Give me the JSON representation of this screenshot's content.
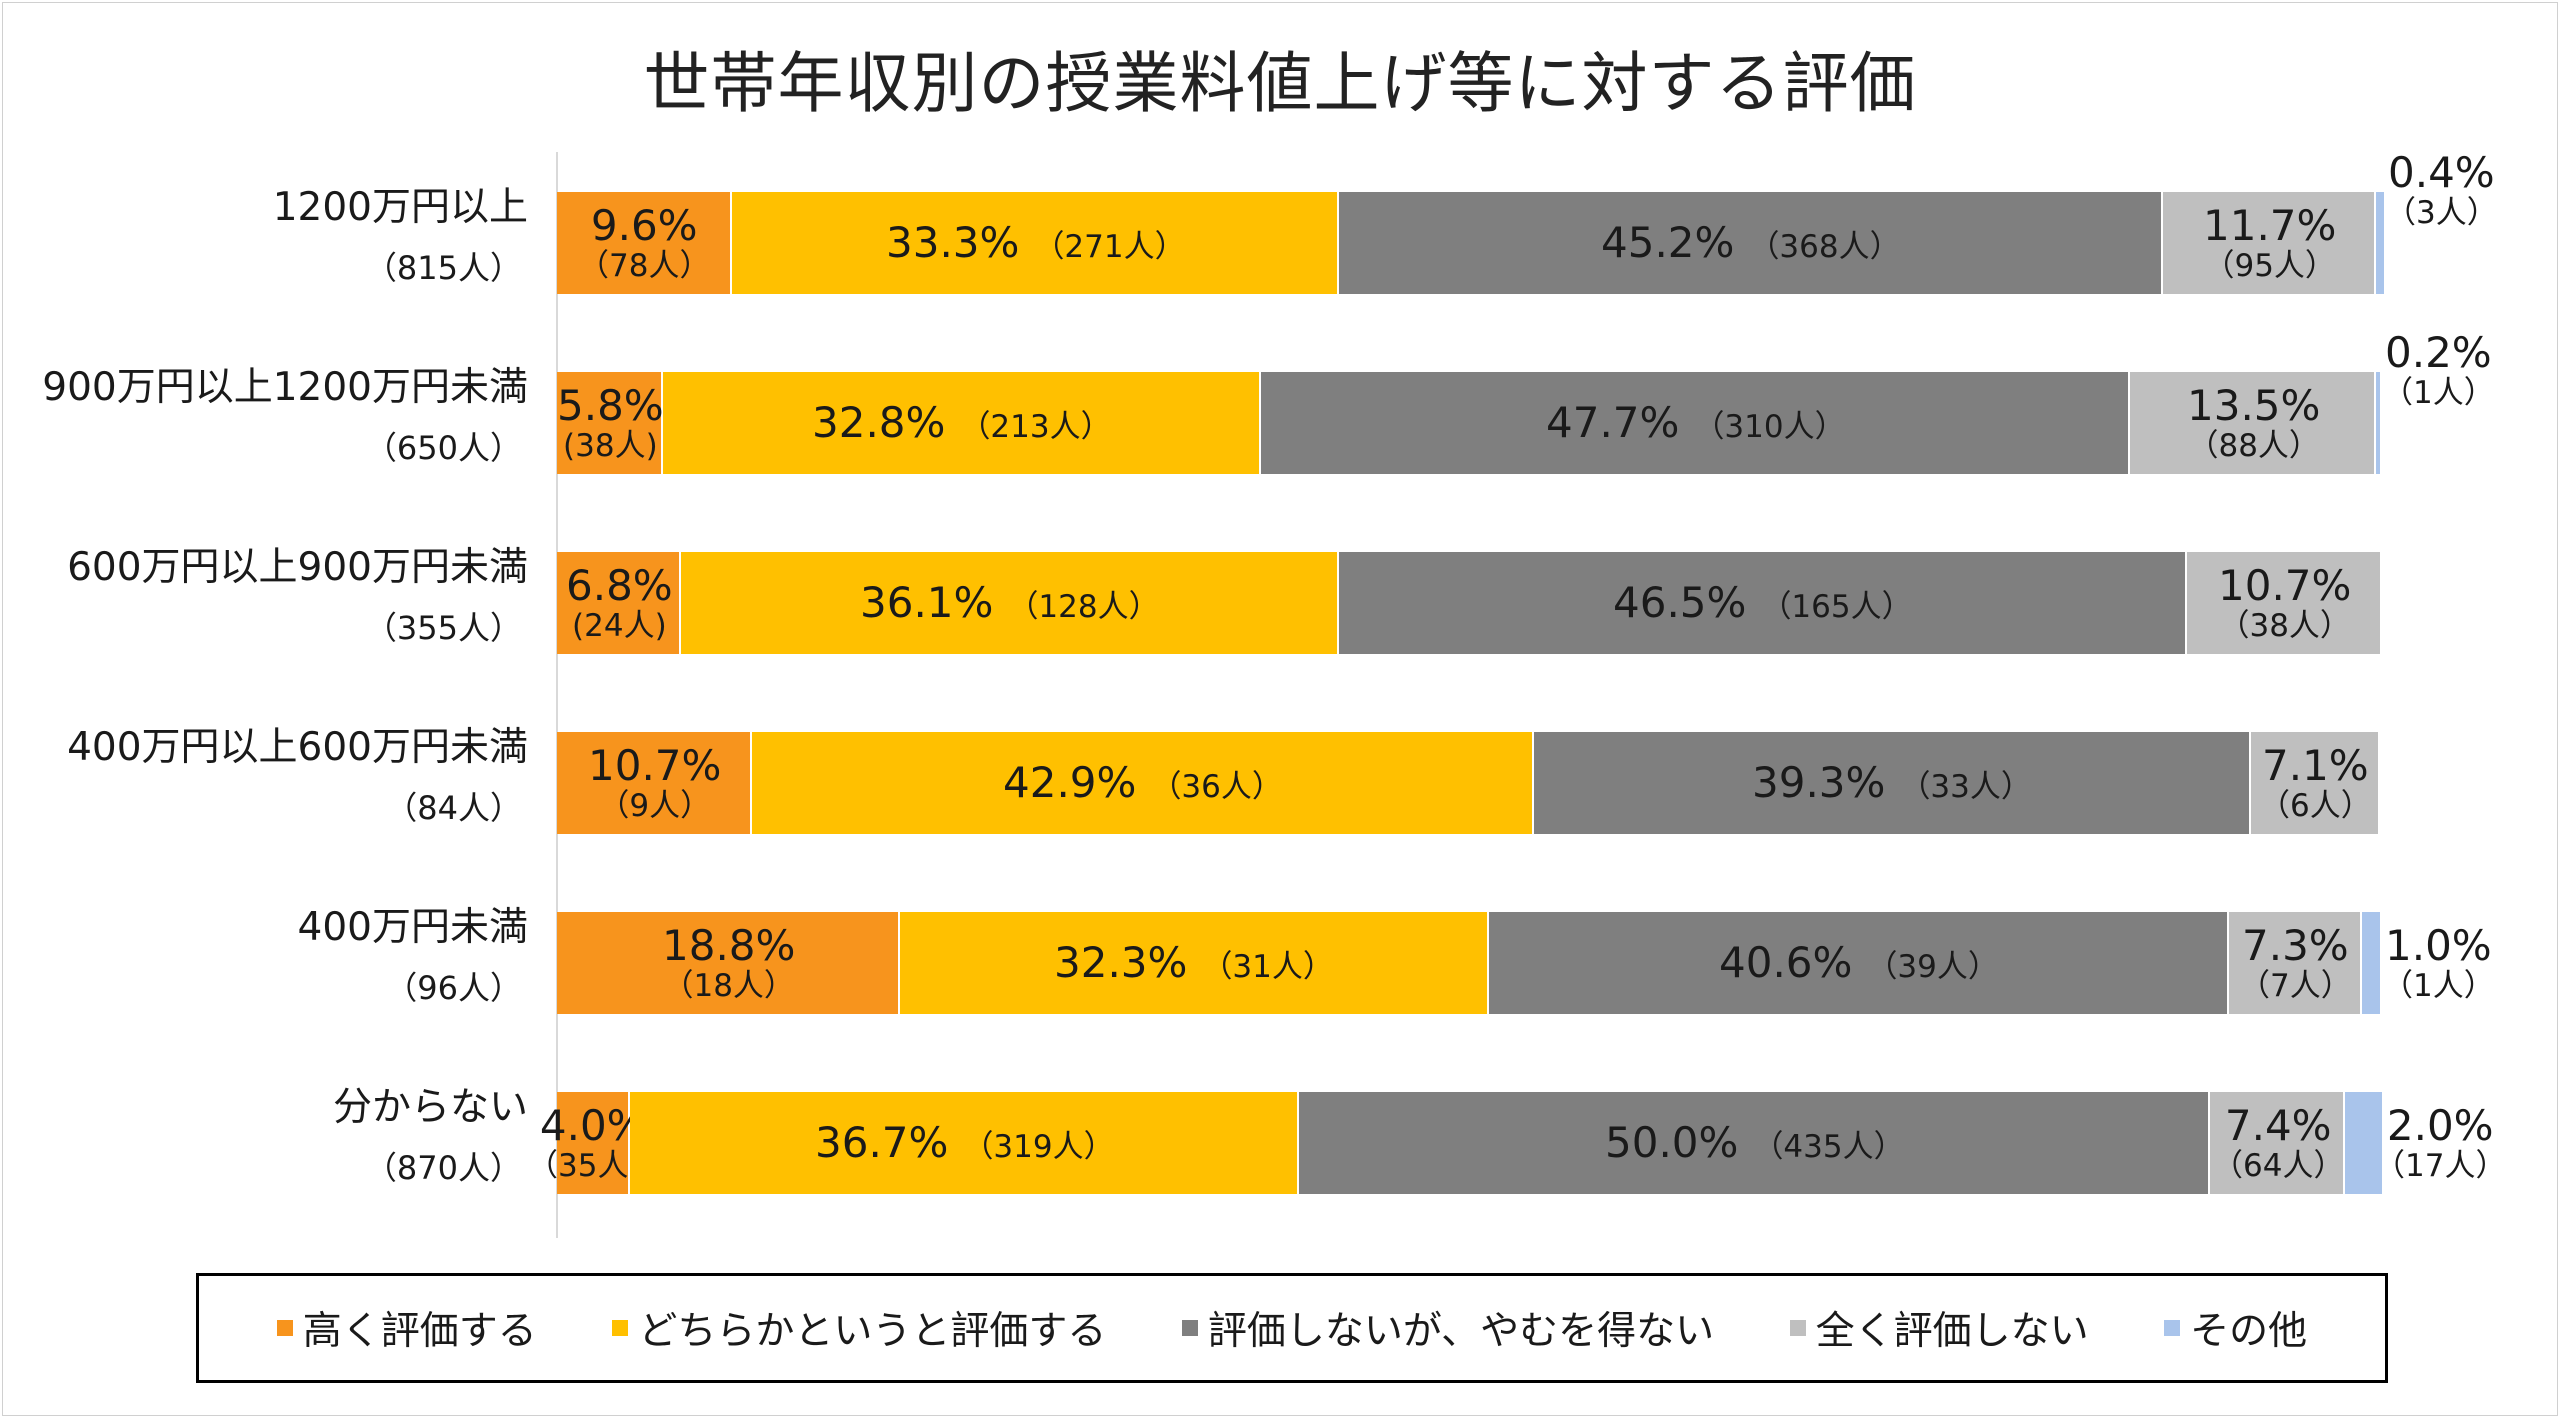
{
  "chart_data": {
    "type": "bar",
    "orientation": "horizontal",
    "stacked": true,
    "normalized": true,
    "title": "世帯年収別の授業料値上げ等に対する評価",
    "categories": [
      {
        "name": "1200万円以上",
        "n": "（815人）"
      },
      {
        "name": "900万円以上1200万円未満",
        "n": "（650人）"
      },
      {
        "name": "600万円以上900万円未満",
        "n": "（355人）"
      },
      {
        "name": "400万円以上600万円未満",
        "n": "（84人）"
      },
      {
        "name": "400万円未満",
        "n": "（96人）"
      },
      {
        "name": "分からない",
        "n": "（870人）"
      }
    ],
    "series": [
      {
        "name": "高く評価する",
        "color": "#F7941D",
        "values": [
          9.6,
          5.8,
          6.8,
          10.7,
          18.8,
          4.0
        ],
        "pct_labels": [
          "9.6%",
          "5.8%",
          "6.8%",
          "10.7%",
          "18.8%",
          "4.0%"
        ],
        "count_labels": [
          "（78人）",
          "(38人)",
          "(24人)",
          "（9人）",
          "（18人）",
          "（35人）"
        ]
      },
      {
        "name": "どちらかというと評価する",
        "color": "#FFC000",
        "values": [
          33.3,
          32.8,
          36.1,
          42.9,
          32.3,
          36.7
        ],
        "pct_labels": [
          "33.3%",
          "32.8%",
          "36.1%",
          "42.9%",
          "32.3%",
          "36.7%"
        ],
        "count_labels": [
          "（271人）",
          "（213人）",
          "（128人）",
          "（36人）",
          "（31人）",
          "（319人）"
        ]
      },
      {
        "name": "評価しないが、やむを得ない",
        "color": "#7F7F7F",
        "values": [
          45.2,
          47.7,
          46.5,
          39.3,
          40.6,
          50.0
        ],
        "pct_labels": [
          "45.2%",
          "47.7%",
          "46.5%",
          "39.3%",
          "40.6%",
          "50.0%"
        ],
        "count_labels": [
          "（368人）",
          "（310人）",
          "（165人）",
          "（33人）",
          "（39人）",
          "（435人）"
        ]
      },
      {
        "name": "全く評価しない",
        "color": "#BFBFBF",
        "values": [
          11.7,
          13.5,
          10.7,
          7.1,
          7.3,
          7.4
        ],
        "pct_labels": [
          "11.7%",
          "13.5%",
          "10.7%",
          "7.1%",
          "7.3%",
          "7.4%"
        ],
        "count_labels": [
          "（95人）",
          "（88人）",
          "（38人）",
          "（6人）",
          "（7人）",
          "（64人）"
        ]
      },
      {
        "name": "その他",
        "color": "#A9C4EB",
        "values": [
          0.4,
          0.2,
          0,
          0,
          1.0,
          2.0
        ],
        "pct_labels": [
          "0.4%",
          "0.2%",
          "",
          "",
          "1.0%",
          "2.0%"
        ],
        "count_labels": [
          "（3人）",
          "（1人）",
          "",
          "",
          "（1人）",
          "（17人）"
        ]
      }
    ],
    "xlim": [
      0,
      100
    ],
    "legend": "bottom"
  }
}
